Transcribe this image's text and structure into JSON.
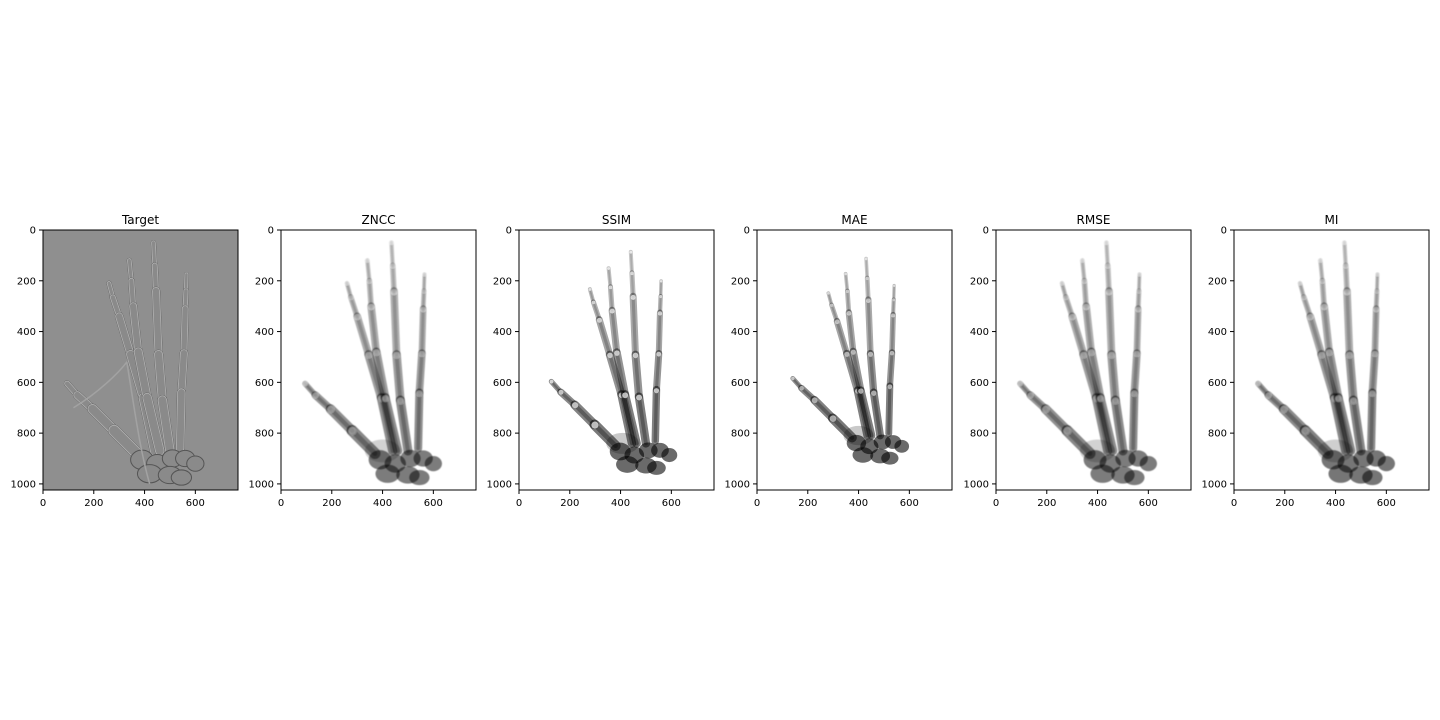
{
  "panels": [
    {
      "title": "Target",
      "style": "edge",
      "gap": 0.0,
      "dark": 0.25
    },
    {
      "title": "ZNCC",
      "style": "drr",
      "gap": 0.45,
      "dark": 0.7
    },
    {
      "title": "SSIM",
      "style": "drr",
      "gap": 0.7,
      "dark": 0.85,
      "shift": [
        40,
        40,
        0.92
      ]
    },
    {
      "title": "MAE",
      "style": "drr",
      "gap": 0.6,
      "dark": 0.85,
      "shift": [
        60,
        70,
        0.85
      ]
    },
    {
      "title": "RMSE",
      "style": "drr",
      "gap": 0.45,
      "dark": 0.7
    },
    {
      "title": "MI",
      "style": "drr",
      "gap": 0.45,
      "dark": 0.75
    }
  ],
  "axes": {
    "x_ticks": [
      "0",
      "200",
      "400",
      "600"
    ],
    "y_ticks": [
      "0",
      "200",
      "400",
      "600",
      "800",
      "1000"
    ],
    "x_range": [
      0,
      768
    ],
    "y_range": [
      1024,
      0
    ]
  },
  "colors": {
    "target_background": "#8f8f8f",
    "frame": "#000000",
    "text": "#000000"
  }
}
